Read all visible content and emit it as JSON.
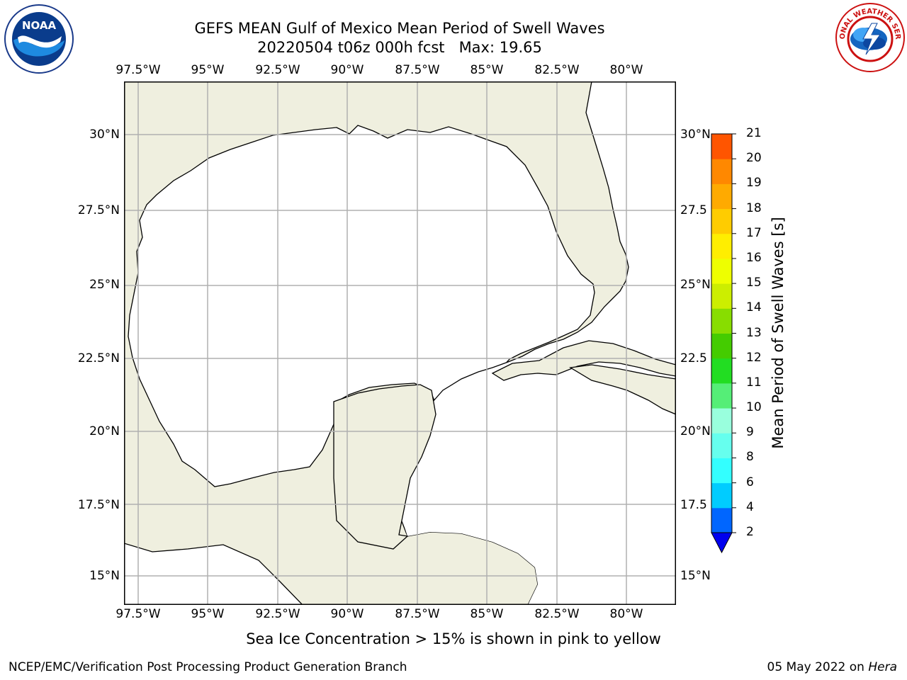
{
  "title": {
    "line1": "GEFS MEAN Gulf of Mexico Mean Period of Swell Waves",
    "line2": "20220504 t06z 000h fcst   Max: 19.65"
  },
  "logos": {
    "noara": "NOAA",
    "nws": "NATIONAL WEATHER SERVICE"
  },
  "map": {
    "lon_ticks": [
      "97.5°W",
      "95°W",
      "92.5°W",
      "90°W",
      "87.5°W",
      "85°W",
      "82.5°W",
      "80°W"
    ],
    "lat_ticks_left": [
      "30°N",
      "27.5°N",
      "25°N",
      "22.5°N",
      "20°N",
      "17.5°N",
      "15°N"
    ],
    "lat_ticks_right": [
      "30°N",
      "27.5",
      "25°N",
      "22.5",
      "20°N",
      "17.5",
      "15°N"
    ],
    "colors": {
      "land": "#efefdf",
      "water": "#ffffff",
      "grid": "#b0b0b0",
      "coast": "#000000"
    }
  },
  "colorbar": {
    "label": "Mean Period of Swell Waves [s]",
    "ticks": [
      "2",
      "4",
      "6",
      "8",
      "9",
      "10",
      "11",
      "12",
      "13",
      "14",
      "15",
      "16",
      "17",
      "18",
      "19",
      "20",
      "21"
    ],
    "levels": [
      2,
      4,
      6,
      8,
      9,
      10,
      11,
      12,
      13,
      14,
      15,
      16,
      17,
      18,
      19,
      20,
      21
    ],
    "colors": [
      "#0066ff",
      "#00ccff",
      "#33ffff",
      "#66ffee",
      "#99ffdd",
      "#55ee77",
      "#22dd22",
      "#44cc00",
      "#88dd00",
      "#ccee00",
      "#eeff00",
      "#ffee00",
      "#ffcc00",
      "#ffaa00",
      "#ff8800",
      "#ff5500",
      "#ff2200"
    ],
    "under_color": "#0000ee"
  },
  "caption": "Sea Ice Concentration > 15% is shown in pink to yellow",
  "footer": {
    "left": "NCEP/EMC/Verification Post Processing Product Generation Branch",
    "right_prefix": "05 May 2022 on ",
    "right_host": "Hera"
  }
}
